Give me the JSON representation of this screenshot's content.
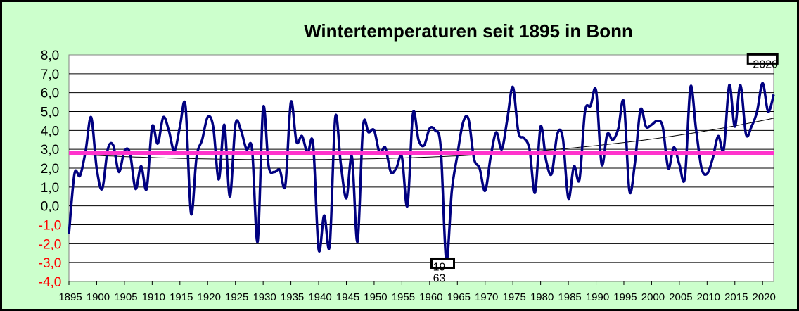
{
  "chart_data": {
    "type": "line",
    "title": "Wintertemperaturen seit 1895 in Bonn",
    "xlabel": "",
    "ylabel": "",
    "ylim": [
      -4.0,
      8.0
    ],
    "y_ticks": [
      "8,0",
      "7,0",
      "6,0",
      "5,0",
      "4,0",
      "3,0",
      "2,0",
      "1,0",
      "0,0",
      "-1,0",
      "-2,0",
      "-3,0",
      "-4,0"
    ],
    "x_ticks": [
      "1895",
      "1900",
      "1905",
      "1910",
      "1915",
      "1920",
      "1925",
      "1930",
      "1935",
      "1940",
      "1945",
      "1950",
      "1955",
      "1960",
      "1965",
      "1970",
      "1975",
      "1980",
      "1985",
      "1990",
      "1995",
      "2000",
      "2005",
      "2010",
      "2015",
      "2020"
    ],
    "grid": true,
    "negative_tick_color": "#ff0000",
    "series_color": "#000080",
    "mean_line_color": "#ff33cc",
    "trend_color": "#000000",
    "series": [
      {
        "x": [
          1895,
          1896,
          1897,
          1898,
          1899,
          1900,
          1901,
          1902,
          1903,
          1904,
          1905,
          1906,
          1907,
          1908,
          1909,
          1910,
          1911,
          1912,
          1913,
          1914,
          1915,
          1916,
          1917,
          1918,
          1919,
          1920,
          1921,
          1922,
          1923,
          1924,
          1925,
          1926,
          1927,
          1928,
          1929,
          1930,
          1931,
          1932,
          1933,
          1934,
          1935,
          1936,
          1937,
          1938,
          1939,
          1940,
          1941,
          1942,
          1943,
          1944,
          1945,
          1946,
          1947,
          1948,
          1949,
          1950,
          1951,
          1952,
          1953,
          1954,
          1955,
          1956,
          1957,
          1958,
          1959,
          1960,
          1961,
          1962,
          1963,
          1964,
          1965,
          1966,
          1967,
          1968,
          1969,
          1970,
          1971,
          1972,
          1973,
          1974,
          1975,
          1976,
          1977,
          1978,
          1979,
          1980,
          1981,
          1982,
          1983,
          1984,
          1985,
          1986,
          1987,
          1988,
          1989,
          1990,
          1991,
          1992,
          1993,
          1994,
          1995,
          1996,
          1997,
          1998,
          1999,
          2000,
          2001,
          2002,
          2003,
          2004,
          2005,
          2006,
          2007,
          2008,
          2009,
          2010,
          2011,
          2012,
          2013,
          2014,
          2015,
          2016,
          2017,
          2018,
          2019,
          2020,
          2021,
          2022
        ],
        "values": [
          -1.5,
          1.7,
          1.6,
          2.9,
          4.7,
          2.0,
          0.9,
          3.0,
          3.2,
          1.8,
          2.9,
          2.8,
          0.9,
          2.1,
          0.9,
          4.2,
          3.3,
          4.7,
          4.0,
          2.9,
          4.2,
          5.3,
          -0.4,
          2.6,
          3.5,
          4.7,
          4.2,
          1.4,
          4.3,
          0.5,
          4.3,
          4.0,
          3.0,
          3.0,
          -1.9,
          5.2,
          2.1,
          1.8,
          1.9,
          1.1,
          5.5,
          3.4,
          3.7,
          2.8,
          3.3,
          -2.3,
          -0.5,
          -2.1,
          4.7,
          2.2,
          0.4,
          2.6,
          -1.9,
          4.2,
          3.9,
          4.0,
          2.8,
          3.1,
          1.8,
          2.0,
          2.6,
          0.0,
          4.9,
          3.5,
          3.2,
          4.1,
          4.0,
          3.1,
          -2.9,
          0.8,
          2.7,
          4.4,
          4.6,
          2.5,
          2.0,
          0.8,
          2.6,
          3.9,
          3.0,
          4.6,
          6.3,
          3.9,
          3.6,
          3.0,
          0.7,
          4.2,
          2.4,
          1.7,
          3.8,
          3.6,
          0.4,
          2.1,
          1.4,
          5.0,
          5.3,
          6.1,
          2.2,
          3.8,
          3.5,
          4.1,
          5.5,
          0.8,
          2.3,
          5.1,
          4.2,
          4.3,
          4.5,
          4.2,
          2.0,
          3.1,
          2.2,
          1.5,
          6.3,
          4.1,
          2.0,
          1.7,
          2.5,
          3.7,
          3.0,
          6.4,
          4.2,
          6.4,
          3.8,
          4.2,
          5.0,
          6.5,
          5.0,
          5.9
        ]
      }
    ],
    "mean_line_value": 2.8,
    "trend": {
      "type": "polynomial",
      "values_at": {
        "1895": 2.75,
        "1935": 2.45,
        "1965": 2.65,
        "1985": 3.05,
        "2005": 3.75,
        "2022": 4.65
      }
    },
    "annotations": [
      {
        "text": "2020",
        "x": 2020,
        "y": 7.8
      },
      {
        "text": "19\n63",
        "x": 1963,
        "y": -2.9
      }
    ]
  }
}
